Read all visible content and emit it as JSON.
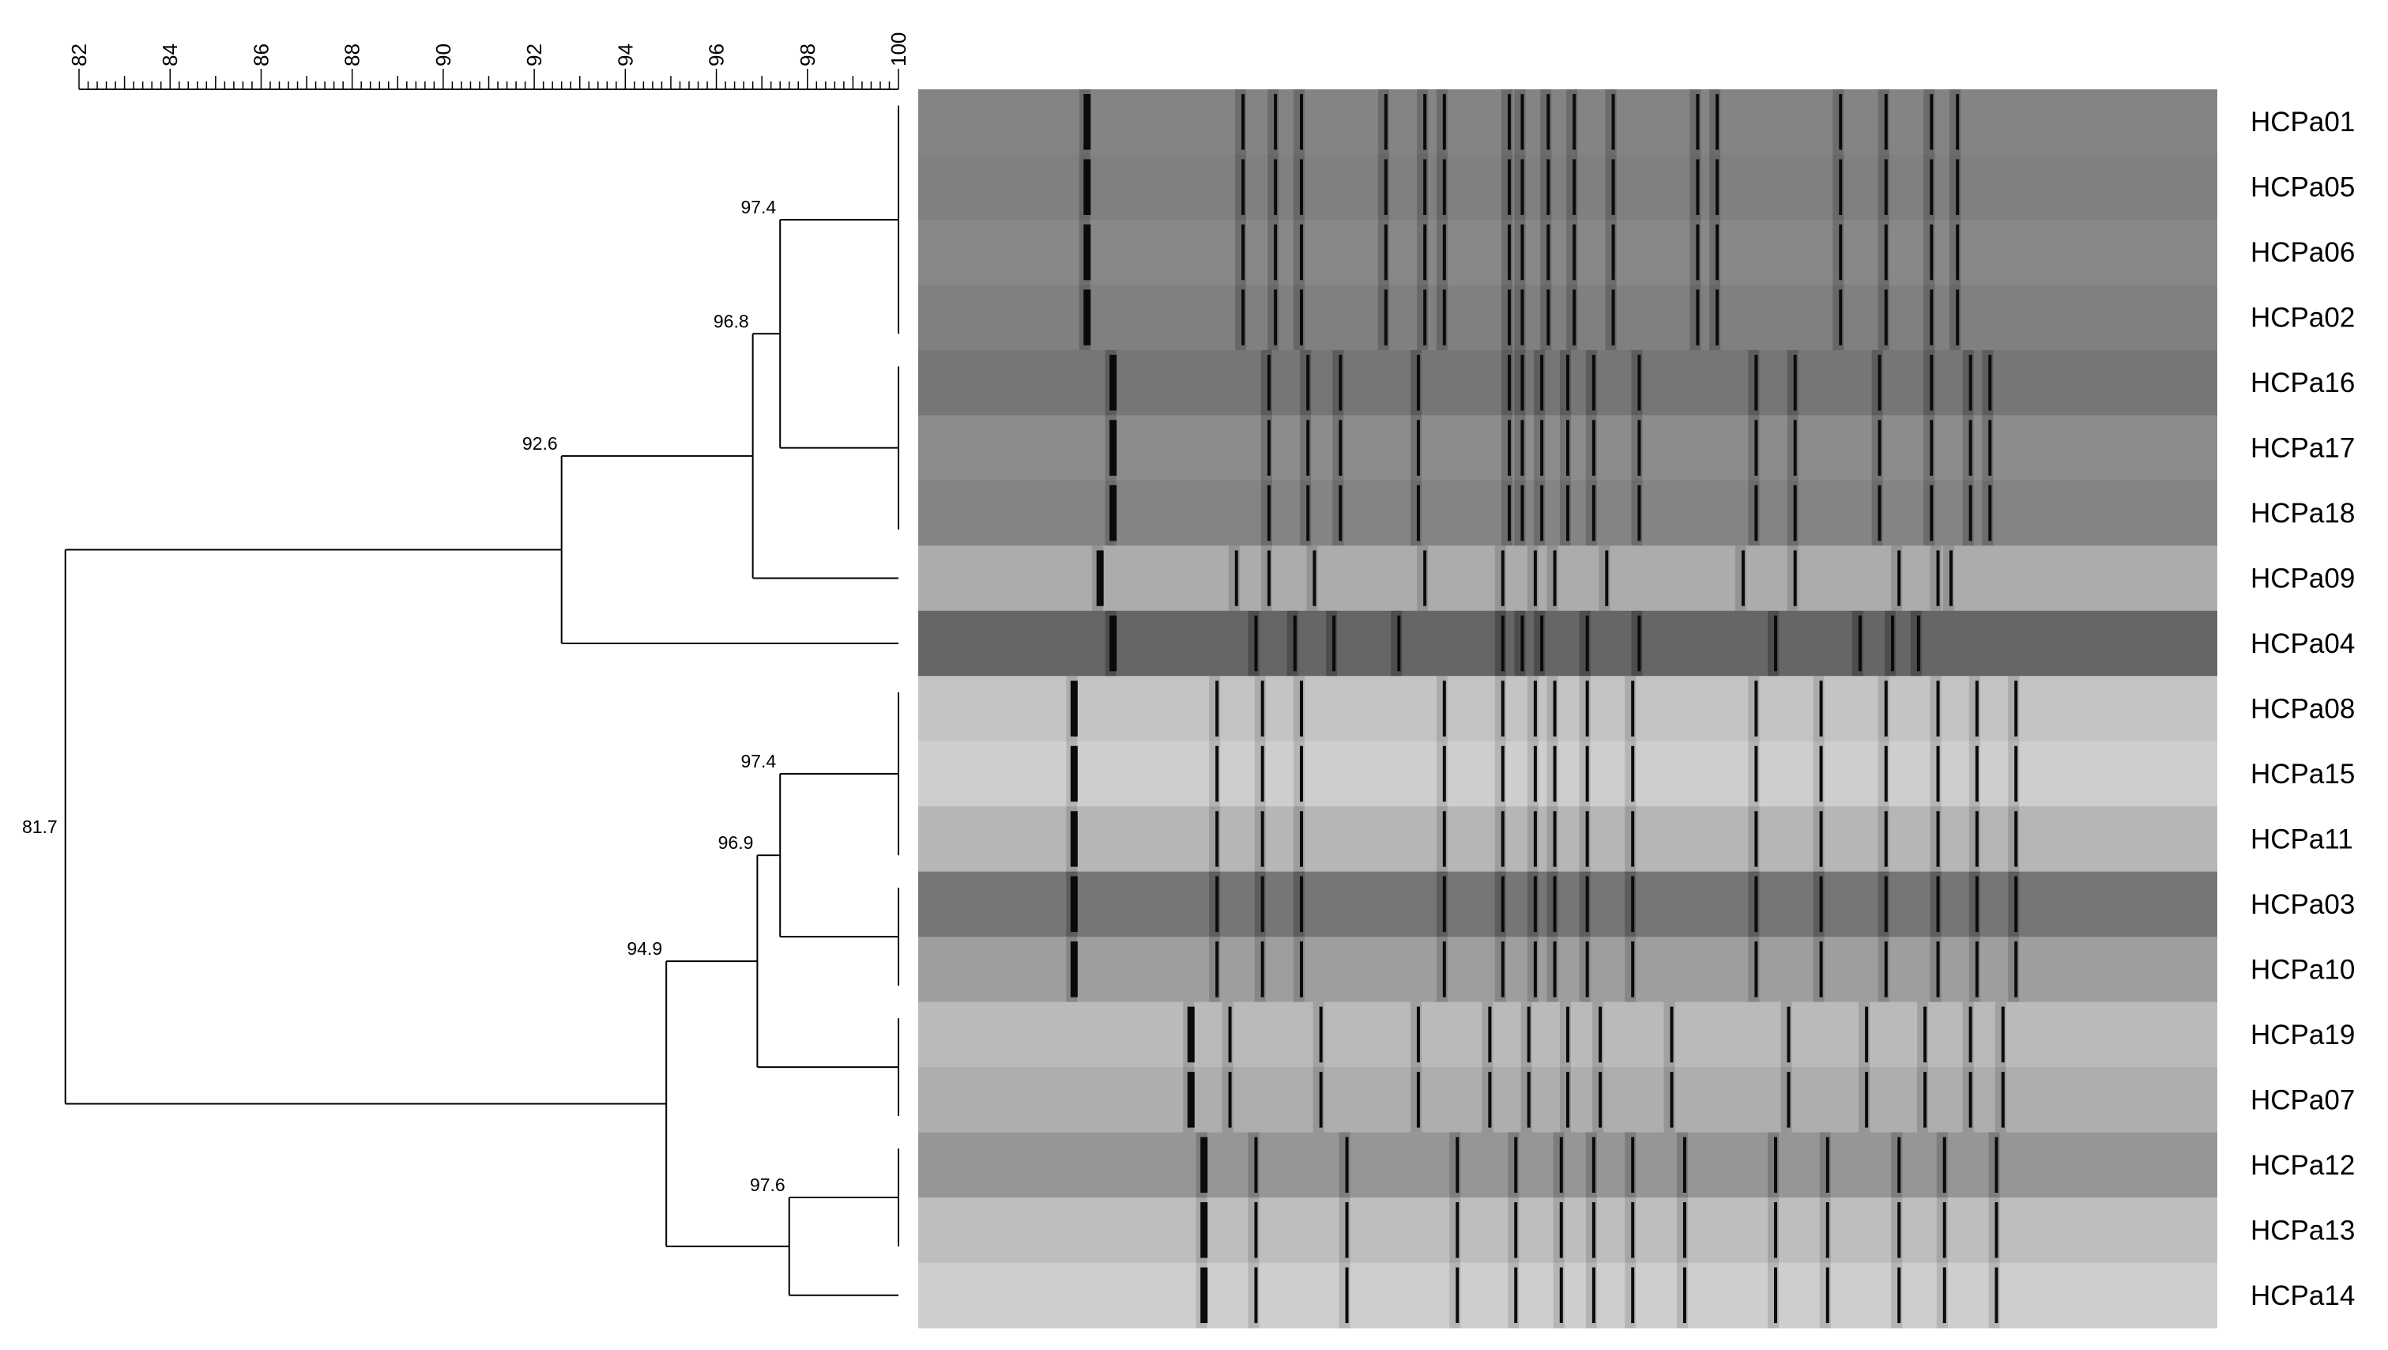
{
  "scale": {
    "min": 82,
    "max": 100,
    "labels": [
      "82",
      "84",
      "86",
      "88",
      "90",
      "92",
      "94",
      "96",
      "98",
      "100"
    ]
  },
  "lanes": [
    {
      "id": "HCPa01",
      "shade": 132,
      "profile": "A"
    },
    {
      "id": "HCPa05",
      "shade": 128,
      "profile": "A"
    },
    {
      "id": "HCPa06",
      "shade": 136,
      "profile": "A"
    },
    {
      "id": "HCPa02",
      "shade": 128,
      "profile": "A"
    },
    {
      "id": "HCPa16",
      "shade": 118,
      "profile": "B"
    },
    {
      "id": "HCPa17",
      "shade": 140,
      "profile": "B"
    },
    {
      "id": "HCPa18",
      "shade": 132,
      "profile": "B"
    },
    {
      "id": "HCPa09",
      "shade": 172,
      "profile": "C"
    },
    {
      "id": "HCPa04",
      "shade": 102,
      "profile": "D"
    },
    {
      "id": "HCPa08",
      "shade": 196,
      "profile": "E"
    },
    {
      "id": "HCPa15",
      "shade": 206,
      "profile": "E"
    },
    {
      "id": "HCPa11",
      "shade": 182,
      "profile": "E"
    },
    {
      "id": "HCPa03",
      "shade": 118,
      "profile": "E"
    },
    {
      "id": "HCPa10",
      "shade": 158,
      "profile": "E"
    },
    {
      "id": "HCPa19",
      "shade": 186,
      "profile": "F"
    },
    {
      "id": "HCPa07",
      "shade": 174,
      "profile": "F"
    },
    {
      "id": "HCPa12",
      "shade": 150,
      "profile": "G"
    },
    {
      "id": "HCPa13",
      "shade": 190,
      "profile": "G"
    },
    {
      "id": "HCPa14",
      "shade": 206,
      "profile": "G"
    }
  ],
  "band_profiles": {
    "A": [
      13,
      25,
      27.5,
      29.5,
      36,
      39,
      40.5,
      45.5,
      46.5,
      48.5,
      50.5,
      53.5,
      60,
      61.5,
      71,
      74.5,
      78,
      80
    ],
    "B": [
      15,
      27,
      30,
      32.5,
      38.5,
      45.5,
      46.5,
      48,
      50,
      52,
      55.5,
      64.5,
      67.5,
      74,
      78,
      81,
      82.5
    ],
    "C": [
      14,
      24.5,
      27,
      30.5,
      39,
      45,
      47.5,
      49,
      53,
      63.5,
      67.5,
      75.5,
      78.5,
      79.5
    ],
    "D": [
      15,
      26,
      29,
      32,
      37,
      45,
      46.5,
      48,
      51.5,
      55.5,
      66,
      72.5,
      75,
      77
    ],
    "E": [
      12,
      23,
      26.5,
      29.5,
      40.5,
      45,
      47.5,
      49,
      51.5,
      55,
      64.5,
      69.5,
      74.5,
      78.5,
      81.5,
      84.5
    ],
    "F": [
      21,
      24,
      31,
      38.5,
      44,
      47,
      50,
      52.5,
      58,
      67,
      73,
      77.5,
      81,
      83.5
    ],
    "G": [
      22,
      26,
      33,
      41.5,
      46,
      49.5,
      52,
      55,
      59,
      66,
      70,
      75.5,
      79,
      83
    ]
  },
  "clusters": [
    {
      "label": "81.7",
      "value": 81.7
    },
    {
      "label": "92.6",
      "value": 92.6
    },
    {
      "label": "96.8",
      "value": 96.8
    },
    {
      "label": "97.4",
      "value": 97.4
    },
    {
      "label": "94.9",
      "value": 94.9
    },
    {
      "label": "96.9",
      "value": 96.9
    },
    {
      "label": "97.4",
      "value": 97.4
    },
    {
      "label": "97.6",
      "value": 97.6
    }
  ]
}
